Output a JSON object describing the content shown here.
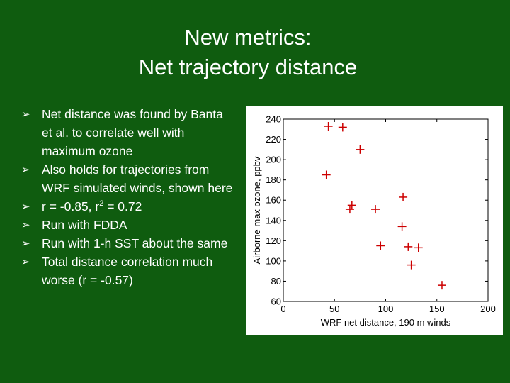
{
  "slide": {
    "title_line1": "New metrics:",
    "title_line2": "Net trajectory distance",
    "bullets": [
      "Net distance was found by Banta et al. to correlate well with maximum ozone",
      "Also holds for trajectories from WRF simulated winds, shown here",
      "r = -0.85, r",
      "Run with FDDA",
      "Run with 1-h SST about the same",
      "Total distance correlation much worse (r = -0.57)"
    ],
    "r2_exponent": "2",
    "r2_value": " = 0.72",
    "bullet_icon": "arrow-right-icon"
  },
  "chart_data": {
    "type": "scatter",
    "xlabel": "WRF net distance, 190 m winds",
    "ylabel": "Airborne max ozone, ppbv",
    "xlim": [
      0,
      200
    ],
    "ylim": [
      60,
      240
    ],
    "xticks": [
      0,
      50,
      100,
      150,
      200
    ],
    "yticks": [
      60,
      80,
      100,
      120,
      140,
      160,
      180,
      200,
      220,
      240
    ],
    "grid": false,
    "marker": "+",
    "marker_color": "#cc0000",
    "series": [
      {
        "x": [
          44,
          58,
          75,
          42,
          67,
          65,
          90,
          117,
          116,
          95,
          122,
          132,
          125,
          155
        ],
        "y": [
          233,
          232,
          210,
          185,
          155,
          151,
          151,
          163,
          134,
          115,
          114,
          113,
          96,
          76
        ]
      }
    ]
  }
}
